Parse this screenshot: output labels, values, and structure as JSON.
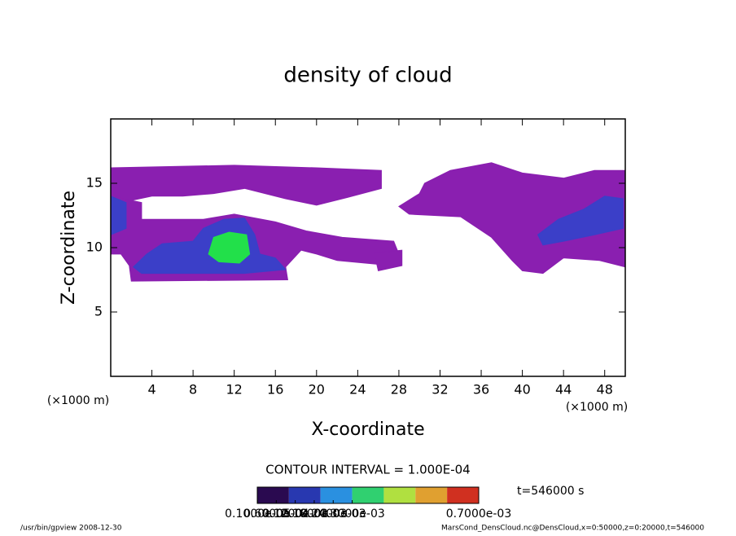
{
  "chart_data": {
    "type": "contour",
    "title": "density of cloud",
    "xlabel": "X-coordinate",
    "ylabel": "Z-coordinate",
    "xunit": "(×1000 m)",
    "xunit2": "(×1000 m)",
    "xlim": [
      0,
      50
    ],
    "ylim": [
      0,
      20
    ],
    "xticks": [
      4,
      8,
      12,
      16,
      20,
      24,
      28,
      32,
      36,
      40,
      44,
      48
    ],
    "yticks": [
      5,
      10,
      15
    ],
    "regions": [
      {
        "color": "#8a1fb0",
        "x": [
          0,
          12,
          20,
          26.3,
          26.3,
          23,
          20,
          17,
          13,
          10,
          7,
          4,
          1,
          0
        ],
        "z": [
          16.2,
          16.4,
          16.2,
          16.0,
          14.6,
          13.9,
          13.3,
          13.8,
          14.6,
          14.2,
          14,
          14,
          13.5,
          13
        ]
      },
      {
        "color": "#8a1fb0",
        "x": [
          0,
          3,
          3,
          9,
          12,
          16,
          19,
          22.5,
          27.5,
          28,
          26,
          22,
          20,
          18.5,
          17,
          17.2,
          2,
          1.8,
          1,
          0
        ],
        "z": [
          14,
          13.5,
          12.2,
          12.2,
          12.6,
          12,
          11.3,
          10.8,
          10.5,
          9.5,
          8.7,
          9,
          9.5,
          9.8,
          8.5,
          7.5,
          7.4,
          8.6,
          9.5,
          9.5
        ]
      },
      {
        "color": "#8a1fb0",
        "x": [
          30.5,
          33,
          37,
          40,
          44,
          47,
          50,
          50,
          47.5,
          44,
          42,
          40,
          39,
          37,
          34,
          29,
          28,
          30
        ],
        "z": [
          15,
          16,
          16.6,
          15.8,
          15.4,
          16,
          16,
          8.5,
          9,
          9.2,
          8,
          8.2,
          9,
          10.8,
          12.4,
          12.6,
          13.2,
          14.2
        ]
      },
      {
        "color": "#8a1fb0",
        "x": [
          25.6,
          28.3,
          28.3,
          26
        ],
        "z": [
          9.6,
          9.8,
          8.6,
          8.2
        ]
      },
      {
        "color": "#3b3fc8",
        "x": [
          0,
          1.5,
          1.5,
          0
        ],
        "z": [
          14,
          13.5,
          11.5,
          11
        ]
      },
      {
        "color": "#3b3fc8",
        "x": [
          2.2,
          3.5,
          5,
          8,
          9,
          11,
          13,
          14,
          14.5,
          16,
          17,
          13,
          8,
          3
        ],
        "z": [
          8.5,
          9.5,
          10.3,
          10.5,
          11.5,
          12.2,
          12.3,
          11,
          9.5,
          9.2,
          8.3,
          8,
          8,
          8
        ]
      },
      {
        "color": "#3b3fc8",
        "x": [
          41.5,
          43.5,
          46,
          48,
          49.8,
          49.8,
          47,
          44,
          42
        ],
        "z": [
          11,
          12.2,
          13,
          14,
          13.8,
          11.5,
          11,
          10.5,
          10.2
        ]
      },
      {
        "color": "#22e04a",
        "x": [
          9.5,
          10,
          11.5,
          13.2,
          13.5,
          12.5,
          10.5
        ],
        "z": [
          9.5,
          10.8,
          11.2,
          11,
          9.5,
          8.8,
          8.9
        ]
      }
    ],
    "contour_interval": "CONTOUR INTERVAL = 1.000E-04",
    "time_label": "t=546000 s",
    "colorbar": {
      "lim": [
        0,
        0.0007
      ],
      "colors": [
        "#2a0a50",
        "#2838b0",
        "#2a90e0",
        "#30d070",
        "#b0e040",
        "#e0a030",
        "#d03020"
      ],
      "ticks": [
        {
          "value": 1e-06,
          "label": "0.1000e-05"
        },
        {
          "value": 6e-05,
          "label": "0.6000e-04"
        },
        {
          "value": 0.00012,
          "label": "0.1200e-03"
        },
        {
          "value": 0.00018,
          "label": "0.1800e-03"
        },
        {
          "value": 0.00024,
          "label": "0.2400e-03"
        },
        {
          "value": 0.0003,
          "label": "0.3000e-03"
        },
        {
          "value": 0.0007,
          "label": "0.7000e-03"
        }
      ]
    },
    "footer_left": "/usr/bin/gpview   2008-12-30",
    "footer_right": "MarsCond_DensCloud.nc@DensCloud,x=0:50000,z=0:20000,t=546000"
  }
}
